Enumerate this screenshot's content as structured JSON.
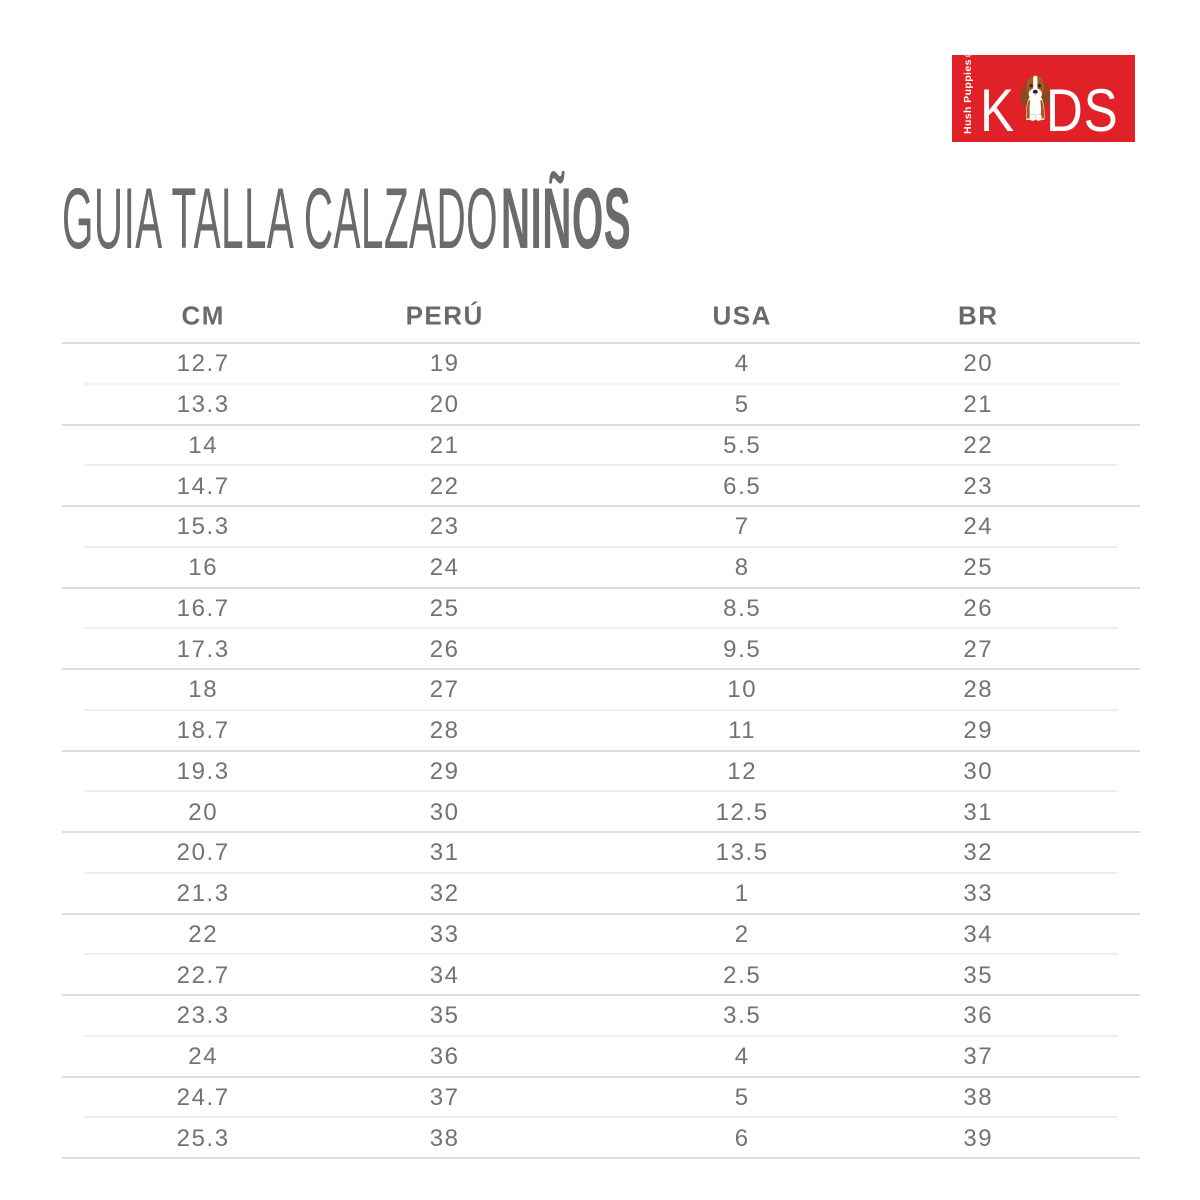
{
  "logo": {
    "brand_vertical": "Hush Puppies®",
    "kids_k": "K",
    "kids_ds": "DS",
    "bg_color": "#e02228",
    "text_color": "#ffffff"
  },
  "title": {
    "regular": "GUIA TALLA CALZADO",
    "bold": "NIÑOS",
    "color": "#6b6b6b"
  },
  "table": {
    "columns": [
      "CM",
      "PERÚ",
      "USA",
      "BR"
    ],
    "rows": [
      [
        "12.7",
        "19",
        "4",
        "20"
      ],
      [
        "13.3",
        "20",
        "5",
        "21"
      ],
      [
        "14",
        "21",
        "5.5",
        "22"
      ],
      [
        "14.7",
        "22",
        "6.5",
        "23"
      ],
      [
        "15.3",
        "23",
        "7",
        "24"
      ],
      [
        "16",
        "24",
        "8",
        "25"
      ],
      [
        "16.7",
        "25",
        "8.5",
        "26"
      ],
      [
        "17.3",
        "26",
        "9.5",
        "27"
      ],
      [
        "18",
        "27",
        "10",
        "28"
      ],
      [
        "18.7",
        "28",
        "11",
        "29"
      ],
      [
        "19.3",
        "29",
        "12",
        "30"
      ],
      [
        "20",
        "30",
        "12.5",
        "31"
      ],
      [
        "20.7",
        "31",
        "13.5",
        "32"
      ],
      [
        "21.3",
        "32",
        "1",
        "33"
      ],
      [
        "22",
        "33",
        "2",
        "34"
      ],
      [
        "22.7",
        "34",
        "2.5",
        "35"
      ],
      [
        "23.3",
        "35",
        "3.5",
        "36"
      ],
      [
        "24",
        "36",
        "4",
        "37"
      ],
      [
        "24.7",
        "37",
        "5",
        "38"
      ],
      [
        "25.3",
        "38",
        "6",
        "39"
      ]
    ],
    "separator_color_strong": "#dcdcdc",
    "separator_color_light": "#efefef",
    "text_color": "#737373"
  }
}
